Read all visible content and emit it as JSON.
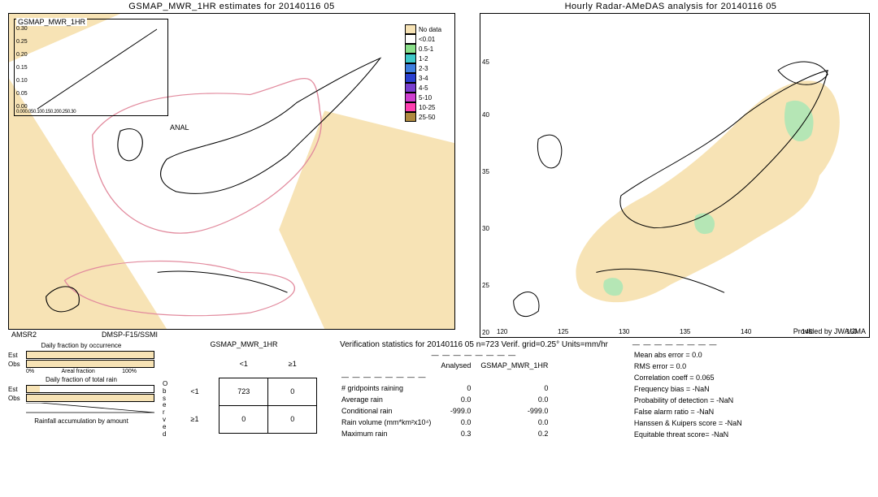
{
  "left_map": {
    "title": "GSMAP_MWR_1HR estimates for 20140116 05",
    "inset_title": "GSMAP_MWR_1HR",
    "inset_yticks": [
      "0.30",
      "0.25",
      "0.20",
      "0.15",
      "0.10",
      "0.05",
      "0.00"
    ],
    "inset_xticks_label": "0.000.050.100.150.200.250.30",
    "anal_label": "ANAL",
    "sat_left": "AMSR2",
    "sat_right": "DMSP-F15/SSMI",
    "swath_color": "#f7e3b5",
    "swath_outline": "#e28b9e",
    "coast_color": "#000000"
  },
  "right_map": {
    "title": "Hourly Radar-AMeDAS analysis for 20140116 05",
    "lat_ticks": [
      45,
      40,
      35,
      30,
      25,
      20
    ],
    "lon_ticks": [
      120,
      125,
      130,
      135,
      140,
      145,
      150
    ],
    "provided": "Provided by JWA/JMA",
    "coverage_color": "#f7e3b5",
    "lowrain_color": "#b5e6b5",
    "coast_color": "#000000"
  },
  "legend": {
    "items": [
      {
        "label": "No data",
        "color": "#f7e3b5"
      },
      {
        "label": "<0.01",
        "color": "#ffffff"
      },
      {
        "label": "0.5-1",
        "color": "#8ae08a"
      },
      {
        "label": "1-2",
        "color": "#3fc9c9"
      },
      {
        "label": "2-3",
        "color": "#3f7fe0"
      },
      {
        "label": "3-4",
        "color": "#2a3fd0"
      },
      {
        "label": "4-5",
        "color": "#7a3fd0"
      },
      {
        "label": "5-10",
        "color": "#d03fd0"
      },
      {
        "label": "10-25",
        "color": "#ff3fb0"
      },
      {
        "label": "25-50",
        "color": "#b08a3f"
      }
    ]
  },
  "bars": {
    "occurrence_title": "Daily fraction by occurrence",
    "totalrain_title": "Daily fraction of total rain",
    "accum_title": "Rainfall accumulation by amount",
    "est_label": "Est",
    "obs_label": "Obs",
    "axis_0": "0%",
    "axis_mid": "Areal fraction",
    "axis_100": "100%",
    "occurrence_est_pct": 100,
    "occurrence_obs_pct": 100,
    "totalrain_est_pct": 10,
    "totalrain_obs_pct": 100,
    "bar_fill_color": "#f7e3b5"
  },
  "contingency": {
    "title": "GSMAP_MWR_1HR",
    "col1": "<1",
    "col2": "≥1",
    "row1": "<1",
    "row2": "≥1",
    "observed_label": "O\nb\ns\ne\nr\nv\ne\nd",
    "cells": [
      [
        723,
        0
      ],
      [
        0,
        0
      ]
    ]
  },
  "verif": {
    "title": "Verification statistics for 20140116 05  n=723  Verif. grid=0.25°  Units=mm/hr",
    "dashes": "— — — — — — — —",
    "col_header_analysed": "Analysed",
    "col_header_model": "GSMAP_MWR_1HR",
    "rows": [
      {
        "label": "# gridpoints raining",
        "a": "0",
        "b": "0"
      },
      {
        "label": "Average rain",
        "a": "0.0",
        "b": "0.0"
      },
      {
        "label": "Conditional rain",
        "a": "-999.0",
        "b": "-999.0"
      },
      {
        "label": "Rain volume (mm*km²x10⁴)",
        "a": "0.0",
        "b": "0.0"
      },
      {
        "label": "Maximum rain",
        "a": "0.3",
        "b": "0.2"
      }
    ],
    "metrics": [
      "Mean abs error = 0.0",
      "RMS error = 0.0",
      "Correlation coeff = 0.065",
      "Frequency bias = -NaN",
      "Probability of detection = -NaN",
      "False alarm ratio = -NaN",
      "Hanssen & Kuipers score = -NaN",
      "Equitable threat score= -NaN"
    ]
  }
}
